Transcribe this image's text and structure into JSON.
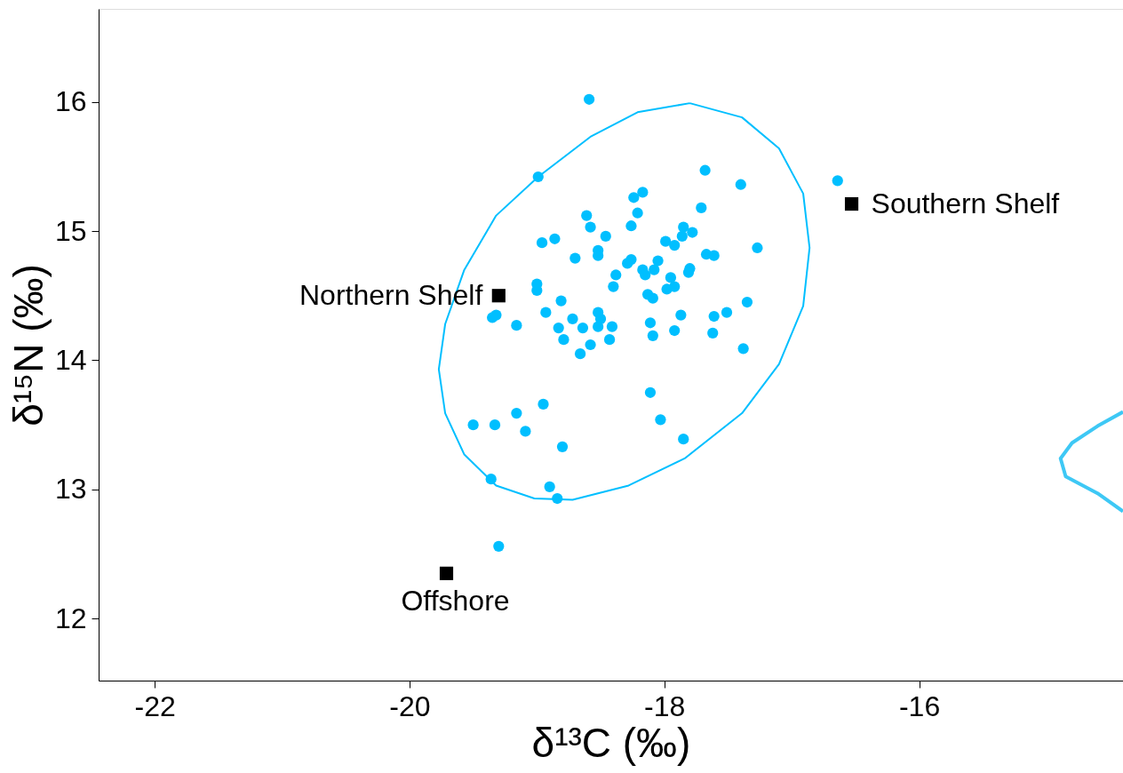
{
  "chart_data": {
    "type": "scatter",
    "xlabel": "δ¹³C (‰)",
    "ylabel": "δ¹⁵N (‰)",
    "xlim": [
      -22.44,
      -14.4
    ],
    "ylim": [
      11.52,
      16.72
    ],
    "xticks": [
      -22,
      -20,
      -18,
      -16
    ],
    "yticks": [
      12,
      13,
      14,
      15,
      16
    ],
    "grid": false,
    "series": [
      {
        "marker": "circle",
        "color": "#00bfff",
        "x": [
          -18.59,
          -18.99,
          -17.68,
          -17.4,
          -18.17,
          -18.24,
          -18.21,
          -17.71,
          -18.61,
          -18.58,
          -18.46,
          -18.26,
          -17.85,
          -17.78,
          -17.86,
          -17.99,
          -17.92,
          -18.96,
          -18.86,
          -18.7,
          -18.52,
          -18.52,
          -17.27,
          -17.67,
          -17.61,
          -18.29,
          -18.26,
          -18.05,
          -18.38,
          -18.4,
          -18.17,
          -18.15,
          -18.08,
          -17.95,
          -17.98,
          -17.92,
          -17.8,
          -17.81,
          -18.13,
          -18.09,
          -19.0,
          -19.0,
          -18.81,
          -19.35,
          -19.32,
          -19.16,
          -18.93,
          -18.72,
          -18.83,
          -18.79,
          -18.64,
          -18.52,
          -18.5,
          -18.52,
          -18.41,
          -18.43,
          -18.58,
          -18.11,
          -17.87,
          -17.92,
          -18.09,
          -17.61,
          -17.62,
          -17.51,
          -17.35,
          -17.38,
          -18.66,
          -18.11,
          -18.03,
          -17.85,
          -19.5,
          -19.33,
          -19.16,
          -19.09,
          -18.95,
          -18.8,
          -19.36,
          -18.9,
          -18.84,
          -19.3,
          -16.64
        ],
        "values": [
          16.02,
          15.42,
          15.47,
          15.36,
          15.3,
          15.26,
          15.14,
          15.18,
          15.12,
          15.03,
          14.96,
          15.04,
          15.03,
          14.99,
          14.96,
          14.92,
          14.89,
          14.91,
          14.94,
          14.79,
          14.85,
          14.81,
          14.87,
          14.82,
          14.81,
          14.75,
          14.78,
          14.77,
          14.66,
          14.57,
          14.7,
          14.66,
          14.7,
          14.64,
          14.55,
          14.57,
          14.71,
          14.68,
          14.51,
          14.48,
          14.59,
          14.54,
          14.46,
          14.33,
          14.35,
          14.27,
          14.37,
          14.32,
          14.25,
          14.16,
          14.25,
          14.37,
          14.32,
          14.26,
          14.26,
          14.16,
          14.12,
          14.29,
          14.35,
          14.23,
          14.19,
          14.34,
          14.21,
          14.37,
          14.45,
          14.09,
          14.05,
          13.75,
          13.54,
          13.39,
          13.5,
          13.5,
          13.59,
          13.45,
          13.66,
          13.33,
          13.08,
          13.02,
          12.93,
          12.56,
          15.39
        ]
      },
      {
        "type": "line",
        "color": "#3ec8f5",
        "x": [
          -14.4,
          -14.6,
          -14.8,
          -14.89,
          -14.85,
          -14.6,
          -14.4
        ],
        "values": [
          13.6,
          13.49,
          13.36,
          13.24,
          13.1,
          12.97,
          12.83
        ]
      },
      {
        "marker": "square",
        "color": "#000000",
        "x": [
          -19.3,
          -16.53,
          -19.71
        ],
        "values": [
          14.5,
          15.21,
          12.35
        ]
      }
    ],
    "annotations": [
      {
        "text": "Northern Shelf",
        "x": -19.3,
        "y": 14.5
      },
      {
        "text": "Southern Shelf",
        "x": -16.53,
        "y": 15.21
      },
      {
        "text": "Offshore",
        "x": -19.71,
        "y": 12.35
      }
    ]
  }
}
